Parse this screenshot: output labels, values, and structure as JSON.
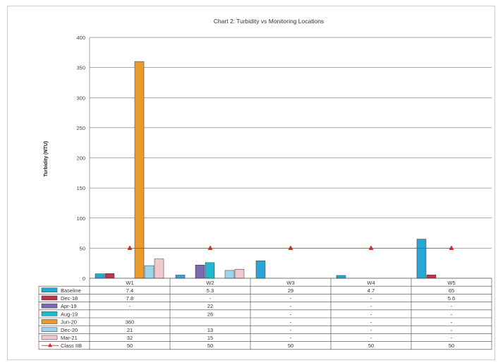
{
  "chart_data": {
    "type": "bar",
    "title": "Chart 2: Turbidity vs Monitoring Locations",
    "ylabel": "Turbidity (NTU)",
    "ylim": [
      0,
      400
    ],
    "yticks": [
      0,
      50,
      100,
      150,
      200,
      250,
      300,
      350,
      400
    ],
    "grid": true,
    "categories": [
      "W1",
      "W2",
      "W3",
      "W4",
      "W5"
    ],
    "series": [
      {
        "name": "Baseline",
        "values": [
          7.4,
          5.3,
          29,
          4.7,
          65
        ],
        "labels": [
          "7.4",
          "5.3",
          "29",
          "4.7",
          "65"
        ],
        "color": "#2aa6d6"
      },
      {
        "name": "Dec-18",
        "values": [
          7.8,
          null,
          null,
          null,
          5.6
        ],
        "labels": [
          "7.8",
          "-",
          "-",
          "-",
          "5.6"
        ],
        "color": "#c0334d"
      },
      {
        "name": "Apr-19",
        "values": [
          null,
          22,
          null,
          null,
          null
        ],
        "labels": [
          "-",
          "22",
          "-",
          "-",
          "-"
        ],
        "color": "#7a68b0"
      },
      {
        "name": "Aug-19",
        "values": [
          null,
          26,
          null,
          null,
          null
        ],
        "labels": [
          "",
          "26",
          "-",
          "-",
          "-"
        ],
        "color": "#25b6cf"
      },
      {
        "name": "Jun-20",
        "values": [
          360,
          null,
          null,
          null,
          null
        ],
        "labels": [
          "360",
          "",
          "-",
          "-",
          "-"
        ],
        "color": "#e89a2a"
      },
      {
        "name": "Dec-20",
        "values": [
          21,
          13,
          null,
          null,
          null
        ],
        "labels": [
          "21",
          "13",
          "-",
          "-",
          "-"
        ],
        "color": "#9fd3ec"
      },
      {
        "name": "Mar-21",
        "values": [
          32,
          15,
          null,
          null,
          null
        ],
        "labels": [
          "32",
          "15",
          "-",
          "-",
          "-"
        ],
        "color": "#f2c8cf"
      },
      {
        "name": "Class IIB",
        "kind": "marker-line",
        "values": [
          50,
          50,
          50,
          50,
          50
        ],
        "labels": [
          "50",
          "50",
          "50",
          "50",
          "50"
        ],
        "color": "#e02020"
      }
    ]
  }
}
